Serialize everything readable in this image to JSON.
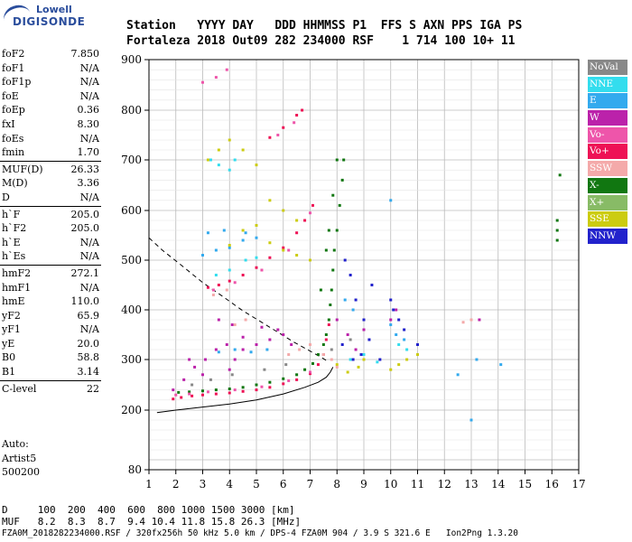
{
  "header": {
    "line1": "Station   YYYY DAY   DDD HHMMSS P1  FFS S AXN PPS IGA PS",
    "line2": "Fortaleza 2018 Out09 282 234000 RSF    1 714 100 10+ 11"
  },
  "logo": {
    "line1": "Lowell",
    "line2": "DIGISONDE"
  },
  "params": [
    {
      "label": "foF2",
      "value": "7.850"
    },
    {
      "label": "foF1",
      "value": "N/A"
    },
    {
      "label": "foF1p",
      "value": "N/A"
    },
    {
      "label": "foE",
      "value": "N/A"
    },
    {
      "label": "foEp",
      "value": "0.36"
    },
    {
      "label": "fxI",
      "value": "8.30"
    },
    {
      "label": "foEs",
      "value": "N/A"
    },
    {
      "label": "fmin",
      "value": "1.70"
    },
    {
      "label": "MUF(D)",
      "value": "26.33"
    },
    {
      "label": "M(D)",
      "value": "3.36"
    },
    {
      "label": "D",
      "value": "N/A"
    },
    {
      "label": "h`F",
      "value": "205.0"
    },
    {
      "label": "h`F2",
      "value": "205.0"
    },
    {
      "label": "h`E",
      "value": "N/A"
    },
    {
      "label": "h`Es",
      "value": "N/A"
    },
    {
      "label": "hmF2",
      "value": "272.1"
    },
    {
      "label": "hmF1",
      "value": "N/A"
    },
    {
      "label": "hmE",
      "value": "110.0"
    },
    {
      "label": "yF2",
      "value": "65.9"
    },
    {
      "label": "yF1",
      "value": "N/A"
    },
    {
      "label": "yE",
      "value": "20.0"
    },
    {
      "label": "B0",
      "value": "58.8"
    },
    {
      "label": "B1",
      "value": "3.14"
    },
    {
      "label": "C-level",
      "value": "22"
    }
  ],
  "auto": {
    "line1": "Auto:",
    "line2": "Artist5",
    "line3": "500200"
  },
  "legend": [
    {
      "label": "NoVal",
      "color": "#888888"
    },
    {
      "label": "NNE",
      "color": "#33ddee"
    },
    {
      "label": "E",
      "color": "#33aaee"
    },
    {
      "label": "W",
      "color": "#bb22aa"
    },
    {
      "label": "Vo-",
      "color": "#ee55aa"
    },
    {
      "label": "Vo+",
      "color": "#ee1155"
    },
    {
      "label": "SSW",
      "color": "#f4aaaa"
    },
    {
      "label": "X-",
      "color": "#117711"
    },
    {
      "label": "X+",
      "color": "#88bb66"
    },
    {
      "label": "SSE",
      "color": "#cccc11"
    },
    {
      "label": "NNW",
      "color": "#2222cc"
    }
  ],
  "footer": {
    "d_line": "D     100  200  400  600  800 1000 1500 3000 [km]",
    "muf_line": "MUF   8.2  8.3  8.7  9.4 10.4 11.8 15.8 26.3 [MHz]",
    "info_line": "FZA0M_2018282234000.RSF / 320fx256h 50 kHz 5.0 km / DPS-4 FZA0M 904 / 3.9 S 321.6 E   Ion2Png 1.3.20"
  },
  "chart_data": {
    "type": "scatter",
    "xlim": [
      1,
      17
    ],
    "ylim": [
      80,
      900
    ],
    "x_ticks": [
      1,
      2,
      3,
      4,
      5,
      6,
      7,
      8,
      9,
      10,
      11,
      12,
      13,
      14,
      15,
      16,
      17
    ],
    "y_ticks": [
      80,
      200,
      300,
      400,
      500,
      600,
      700,
      800,
      900
    ],
    "grid": true,
    "series": [
      {
        "name": "X-",
        "color": "#117711",
        "points": [
          [
            2.1,
            235
          ],
          [
            2.5,
            236
          ],
          [
            3,
            238
          ],
          [
            3.5,
            240
          ],
          [
            4,
            242
          ],
          [
            4.5,
            245
          ],
          [
            5,
            250
          ],
          [
            5.5,
            255
          ],
          [
            6,
            262
          ],
          [
            6.5,
            270
          ],
          [
            6.8,
            280
          ],
          [
            7.1,
            292
          ],
          [
            7.3,
            310
          ],
          [
            7.5,
            330
          ],
          [
            7.6,
            350
          ],
          [
            7.7,
            380
          ],
          [
            7.75,
            410
          ],
          [
            7.8,
            440
          ],
          [
            7.85,
            480
          ],
          [
            7.9,
            520
          ],
          [
            8.0,
            560
          ],
          [
            8.1,
            610
          ],
          [
            8.2,
            660
          ],
          [
            8.25,
            700
          ],
          [
            7.4,
            440
          ],
          [
            7.6,
            520
          ],
          [
            7.7,
            560
          ],
          [
            7.85,
            630
          ],
          [
            8.0,
            700
          ],
          [
            16.3,
            670
          ],
          [
            16.2,
            580
          ],
          [
            16.2,
            560
          ],
          [
            16.2,
            540
          ]
        ]
      },
      {
        "name": "Vo+",
        "color": "#ee1155",
        "points": [
          [
            1.9,
            222
          ],
          [
            2.2,
            225
          ],
          [
            2.6,
            228
          ],
          [
            3,
            230
          ],
          [
            3.5,
            232
          ],
          [
            4,
            234
          ],
          [
            4.5,
            237
          ],
          [
            5,
            240
          ],
          [
            5.5,
            245
          ],
          [
            6,
            252
          ],
          [
            6.5,
            260
          ],
          [
            7,
            272
          ],
          [
            7.3,
            290
          ],
          [
            7.5,
            310
          ],
          [
            7.6,
            340
          ],
          [
            7.7,
            370
          ],
          [
            3.2,
            445
          ],
          [
            3.6,
            450
          ],
          [
            4,
            458
          ],
          [
            4.5,
            470
          ],
          [
            5,
            485
          ],
          [
            5.5,
            505
          ],
          [
            6,
            525
          ],
          [
            6.5,
            555
          ],
          [
            6.8,
            580
          ],
          [
            7.1,
            610
          ],
          [
            5.5,
            745
          ],
          [
            6,
            765
          ],
          [
            6.5,
            790
          ],
          [
            6.7,
            800
          ]
        ]
      },
      {
        "name": "Vo-",
        "color": "#ee55aa",
        "points": [
          [
            2,
            230
          ],
          [
            2.5,
            232
          ],
          [
            3.2,
            236
          ],
          [
            4.2,
            240
          ],
          [
            5.2,
            246
          ],
          [
            6.2,
            258
          ],
          [
            7,
            275
          ],
          [
            3.4,
            440
          ],
          [
            4.2,
            455
          ],
          [
            5.2,
            480
          ],
          [
            6.2,
            520
          ],
          [
            7,
            595
          ],
          [
            5.8,
            750
          ],
          [
            6.4,
            775
          ],
          [
            3.0,
            855
          ],
          [
            3.5,
            865
          ],
          [
            3.9,
            880
          ]
        ]
      },
      {
        "name": "W",
        "color": "#bb22aa",
        "points": [
          [
            1.9,
            240
          ],
          [
            2.3,
            260
          ],
          [
            2.7,
            285
          ],
          [
            3.1,
            300
          ],
          [
            3.5,
            320
          ],
          [
            3.9,
            330
          ],
          [
            4.2,
            300
          ],
          [
            2.5,
            300
          ],
          [
            3,
            270
          ],
          [
            4,
            280
          ],
          [
            4.5,
            320
          ],
          [
            5,
            330
          ],
          [
            5.5,
            340
          ],
          [
            6,
            350
          ],
          [
            6.3,
            330
          ],
          [
            3.6,
            380
          ],
          [
            4.1,
            370
          ],
          [
            4.5,
            345
          ],
          [
            5.2,
            365
          ],
          [
            5.8,
            360
          ],
          [
            8,
            380
          ],
          [
            8.4,
            350
          ],
          [
            8.7,
            320
          ],
          [
            9,
            360
          ],
          [
            10,
            380
          ],
          [
            10.2,
            400
          ],
          [
            13.3,
            380
          ]
        ]
      },
      {
        "name": "E",
        "color": "#33aaee",
        "points": [
          [
            3,
            510
          ],
          [
            3.5,
            520
          ],
          [
            4,
            525
          ],
          [
            4.5,
            540
          ],
          [
            5,
            545
          ],
          [
            3.2,
            555
          ],
          [
            3.8,
            560
          ],
          [
            4.6,
            555
          ],
          [
            3.6,
            315
          ],
          [
            4.2,
            320
          ],
          [
            4.8,
            315
          ],
          [
            5.4,
            320
          ],
          [
            8.3,
            420
          ],
          [
            8.6,
            400
          ],
          [
            9,
            380
          ],
          [
            10,
            370
          ],
          [
            10.2,
            350
          ],
          [
            10.5,
            340
          ],
          [
            10,
            620
          ],
          [
            12.5,
            270
          ],
          [
            13,
            180
          ],
          [
            13.2,
            300
          ],
          [
            14.1,
            290
          ]
        ]
      },
      {
        "name": "NNE",
        "color": "#33ddee",
        "points": [
          [
            3.3,
            700
          ],
          [
            3.6,
            690
          ],
          [
            4,
            680
          ],
          [
            4.2,
            700
          ],
          [
            3.5,
            470
          ],
          [
            4,
            480
          ],
          [
            4.6,
            500
          ],
          [
            5,
            505
          ],
          [
            8.5,
            300
          ],
          [
            9,
            310
          ],
          [
            9.5,
            295
          ],
          [
            10.3,
            330
          ],
          [
            10.6,
            320
          ],
          [
            11,
            310
          ]
        ]
      },
      {
        "name": "SSE",
        "color": "#cccc11",
        "points": [
          [
            3.2,
            700
          ],
          [
            3.6,
            720
          ],
          [
            4,
            740
          ],
          [
            4.5,
            720
          ],
          [
            5,
            690
          ],
          [
            5.5,
            620
          ],
          [
            6,
            600
          ],
          [
            6.5,
            580
          ],
          [
            4,
            530
          ],
          [
            4.5,
            560
          ],
          [
            5,
            570
          ],
          [
            5.5,
            535
          ],
          [
            6,
            520
          ],
          [
            6.5,
            510
          ],
          [
            7,
            500
          ],
          [
            8,
            290
          ],
          [
            8.4,
            275
          ],
          [
            8.8,
            285
          ],
          [
            9,
            300
          ],
          [
            10,
            280
          ],
          [
            10.3,
            290
          ],
          [
            10.6,
            300
          ],
          [
            11,
            310
          ]
        ]
      },
      {
        "name": "NNW",
        "color": "#2222cc",
        "points": [
          [
            8.3,
            500
          ],
          [
            8.5,
            470
          ],
          [
            8.7,
            420
          ],
          [
            9,
            380
          ],
          [
            9.2,
            340
          ],
          [
            8.2,
            330
          ],
          [
            8.6,
            300
          ],
          [
            8.9,
            310
          ],
          [
            9.3,
            450
          ],
          [
            10,
            420
          ],
          [
            10.1,
            400
          ],
          [
            10.3,
            380
          ],
          [
            10.5,
            360
          ],
          [
            11,
            330
          ],
          [
            9.6,
            300
          ]
        ]
      },
      {
        "name": "SSW",
        "color": "#f4aaaa",
        "points": [
          [
            3.4,
            430
          ],
          [
            3.9,
            440
          ],
          [
            4.2,
            370
          ],
          [
            4.6,
            380
          ],
          [
            6.2,
            310
          ],
          [
            6.6,
            320
          ],
          [
            7,
            330
          ],
          [
            7.5,
            310
          ],
          [
            7.8,
            300
          ],
          [
            8,
            285
          ],
          [
            12.7,
            375
          ],
          [
            13,
            380
          ]
        ]
      },
      {
        "name": "NoVal",
        "color": "#888888",
        "points": [
          [
            2.6,
            250
          ],
          [
            3.3,
            260
          ],
          [
            4.1,
            270
          ],
          [
            5.3,
            280
          ],
          [
            6.1,
            290
          ],
          [
            7.8,
            320
          ],
          [
            8.5,
            340
          ]
        ]
      }
    ],
    "curves": [
      {
        "name": "profile",
        "points": [
          [
            1.3,
            195
          ],
          [
            2,
            200
          ],
          [
            3,
            206
          ],
          [
            4,
            212
          ],
          [
            5,
            220
          ],
          [
            6,
            232
          ],
          [
            6.8,
            245
          ],
          [
            7.3,
            255
          ],
          [
            7.6,
            265
          ],
          [
            7.75,
            275
          ],
          [
            7.85,
            285
          ]
        ]
      },
      {
        "name": "muf",
        "points": [
          [
            1,
            545
          ],
          [
            1.5,
            520
          ],
          [
            2.2,
            490
          ],
          [
            3,
            455
          ],
          [
            3.8,
            425
          ],
          [
            4.5,
            398
          ],
          [
            5.2,
            375
          ],
          [
            5.8,
            355
          ],
          [
            6.4,
            335
          ],
          [
            6.9,
            320
          ],
          [
            7.4,
            305
          ],
          [
            7.7,
            295
          ]
        ]
      }
    ]
  }
}
